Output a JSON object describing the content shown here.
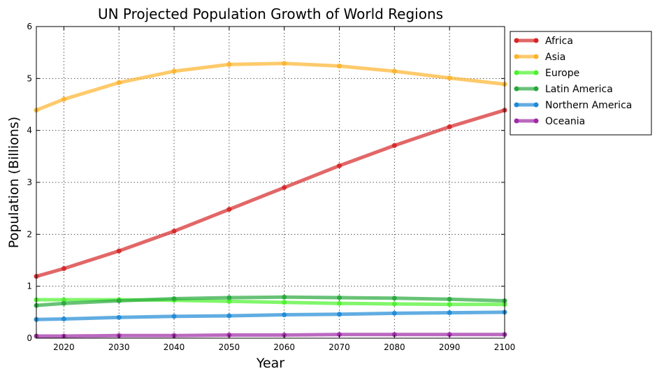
{
  "chart_data": {
    "type": "line",
    "title": "UN Projected Population Growth of World Regions",
    "xlabel": "Year",
    "ylabel": "Population (Billions)",
    "xlim": [
      2015,
      2100
    ],
    "ylim": [
      0,
      6
    ],
    "x_ticks": [
      "2020",
      "2030",
      "2040",
      "2050",
      "2060",
      "2070",
      "2080",
      "2090",
      "2100"
    ],
    "y_ticks": [
      "0",
      "1",
      "2",
      "3",
      "4",
      "5",
      "6"
    ],
    "grid": true,
    "legend_position": "top-right outside",
    "x": [
      2015,
      2020,
      2030,
      2040,
      2050,
      2060,
      2070,
      2080,
      2090,
      2100
    ],
    "series": [
      {
        "name": "Africa",
        "color": "#d62728",
        "values": [
          1.19,
          1.34,
          1.68,
          2.06,
          2.48,
          2.9,
          3.32,
          3.71,
          4.07,
          4.39
        ]
      },
      {
        "name": "Asia",
        "color": "#fdb42c",
        "values": [
          4.39,
          4.6,
          4.92,
          5.14,
          5.27,
          5.29,
          5.24,
          5.14,
          5.01,
          4.89
        ]
      },
      {
        "name": "Europe",
        "color": "#4cf22c",
        "values": [
          0.74,
          0.74,
          0.74,
          0.73,
          0.71,
          0.69,
          0.67,
          0.66,
          0.65,
          0.65
        ]
      },
      {
        "name": "Latin America",
        "color": "#28a83c",
        "values": [
          0.63,
          0.67,
          0.72,
          0.76,
          0.78,
          0.79,
          0.78,
          0.77,
          0.75,
          0.72
        ]
      },
      {
        "name": "Northern America",
        "color": "#1e8ad6",
        "values": [
          0.36,
          0.37,
          0.4,
          0.42,
          0.43,
          0.45,
          0.46,
          0.48,
          0.49,
          0.5
        ]
      },
      {
        "name": "Oceania",
        "color": "#9e2aa5",
        "values": [
          0.04,
          0.04,
          0.05,
          0.05,
          0.06,
          0.06,
          0.07,
          0.07,
          0.07,
          0.07
        ]
      }
    ]
  }
}
